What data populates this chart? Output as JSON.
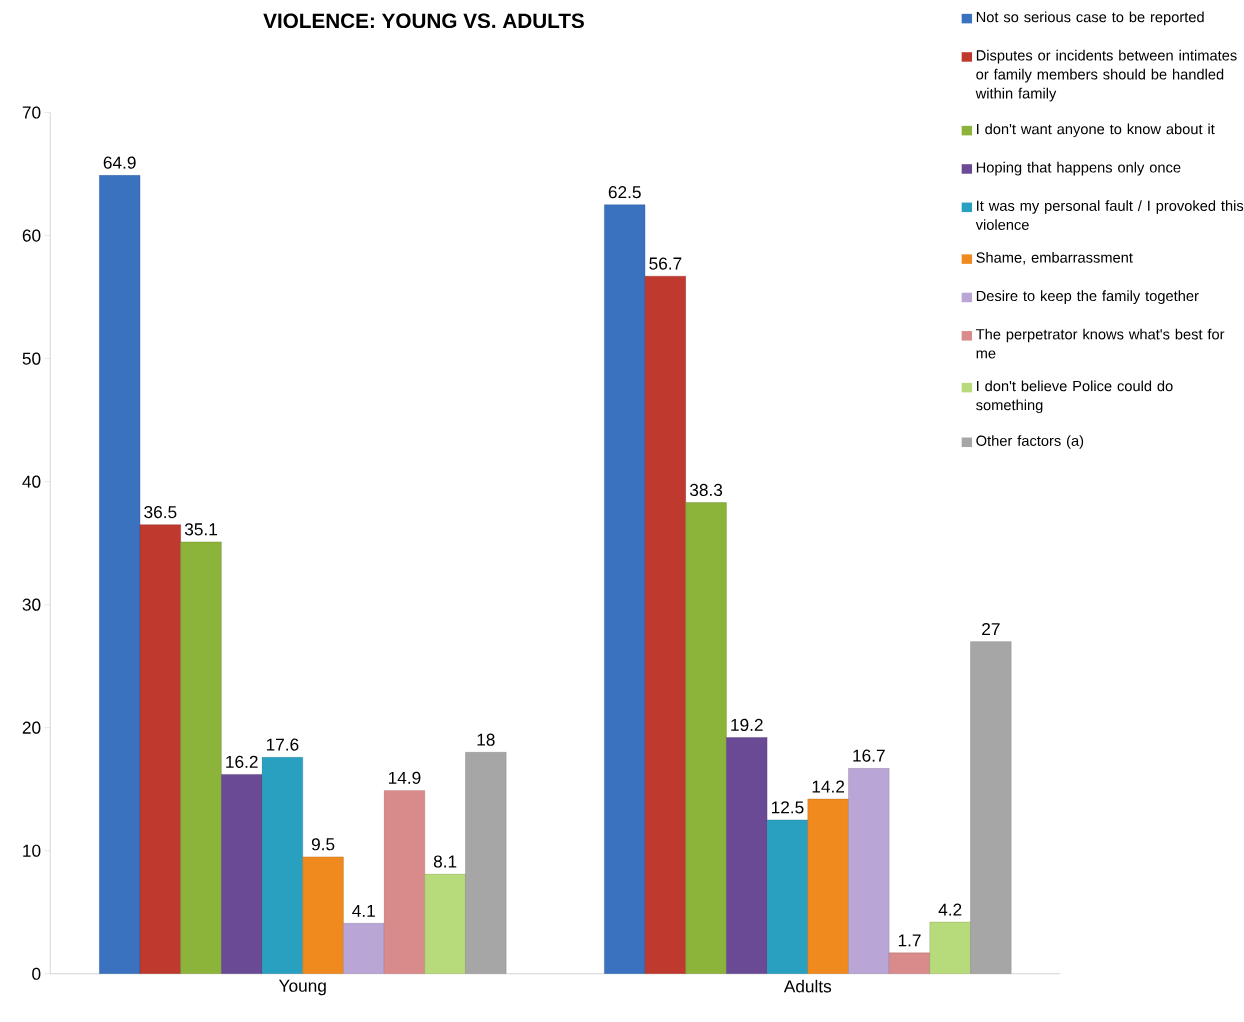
{
  "chart_data": {
    "type": "bar",
    "title": "VIOLENCE: YOUNG VS. ADULTS",
    "categories": [
      "Young",
      "Adults"
    ],
    "series": [
      {
        "name": "Not so serious case to be reported",
        "color": "#3a72c0",
        "values": [
          64.9,
          62.5
        ]
      },
      {
        "name": "Disputes or incidents between intimates or family members should be handled within family",
        "color": "#c0392f",
        "values": [
          36.5,
          56.7
        ]
      },
      {
        "name": "I don't want anyone to know about it",
        "color": "#8cb33a",
        "values": [
          35.1,
          38.3
        ]
      },
      {
        "name": "Hoping that happens only once",
        "color": "#6a4a94",
        "values": [
          16.2,
          19.2
        ]
      },
      {
        "name": "It was my personal fault / I provoked this violence",
        "color": "#2aa0c0",
        "values": [
          17.6,
          12.5
        ]
      },
      {
        "name": "Shame, embarrassment",
        "color": "#f08a1e",
        "values": [
          9.5,
          14.2
        ]
      },
      {
        "name": "Desire to keep the family together",
        "color": "#b9a6d6",
        "values": [
          4.1,
          16.7
        ]
      },
      {
        "name": "The perpetrator knows what's best for me",
        "color": "#d98a8a",
        "values": [
          14.9,
          1.7
        ]
      },
      {
        "name": "I don't believe Police could do something",
        "color": "#b7da7a",
        "values": [
          8.1,
          4.2
        ]
      },
      {
        "name": "Other factors (a)",
        "color": "#a6a6a6",
        "values": [
          18,
          27
        ]
      }
    ],
    "ylim": [
      0,
      70
    ],
    "yticks": [
      0,
      10,
      20,
      30,
      40,
      50,
      60,
      70
    ],
    "data_labels": true,
    "legend": "top right",
    "grid": false
  }
}
